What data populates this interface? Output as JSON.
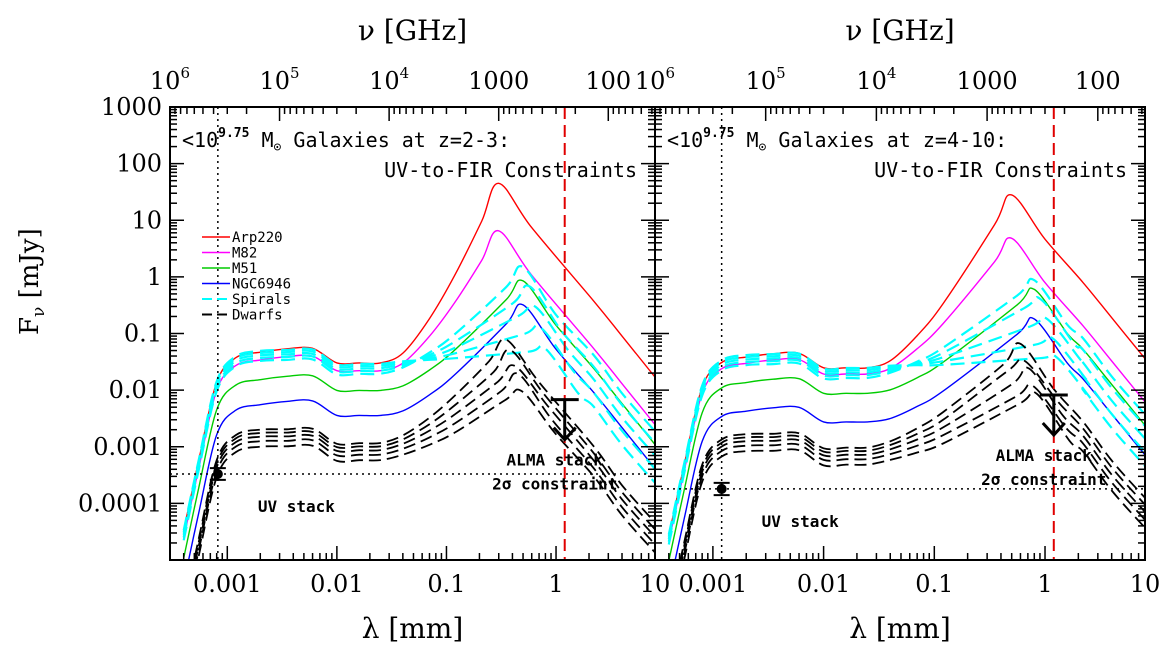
{
  "chart_data": [
    {
      "type": "line",
      "title_line1": "Galaxies at z=2-3:",
      "title_line2": "UV-to-FIR Constraints",
      "mass_prefix": "<10",
      "mass_exp": "9.75",
      "mass_unit": "M",
      "xlabel": "λ [mm]",
      "ylabel": "F",
      "ylabel_sub": "ν",
      "ylabel_unit": " [mJy]",
      "top_label": "ν [GHz]",
      "xscale": "log",
      "yscale": "log",
      "xlim": [
        0.0003,
        8
      ],
      "ylim": [
        1e-05,
        1000
      ],
      "x_ticks": [
        0.001,
        0.01,
        0.1,
        1,
        10
      ],
      "x_tick_labels": [
        "0.001",
        "0.01",
        "0.1",
        "1",
        "10"
      ],
      "y_ticks": [
        0.0001,
        0.001,
        0.01,
        0.1,
        1,
        10,
        100,
        1000
      ],
      "y_tick_labels": [
        "0.0001",
        "0.001",
        "0.01",
        "0.1",
        "1",
        "10",
        "100",
        "1000"
      ],
      "top_ticks_ghz": [
        1000000,
        100000,
        10000,
        1000,
        100
      ],
      "top_tick_base": [
        "10",
        "10",
        "10",
        "1000",
        "100"
      ],
      "top_tick_exp": [
        "6",
        "5",
        "4",
        "",
        ""
      ],
      "legend": {
        "placement": "left",
        "entries": [
          {
            "name": "Arp220",
            "color": "#ff0000",
            "dash": false
          },
          {
            "name": "M82",
            "color": "#ff00ff",
            "dash": false
          },
          {
            "name": "M51",
            "color": "#00cc00",
            "dash": false
          },
          {
            "name": "NGC6946",
            "color": "#0000ff",
            "dash": false
          },
          {
            "name": "Spirals",
            "color": "#00ffff",
            "dash": true
          },
          {
            "name": "Dwarfs",
            "color": "#000000",
            "dash": true
          }
        ]
      },
      "uv_stack": {
        "label": "UV stack",
        "x": 0.00082,
        "y": 0.00033,
        "err_lo": 0.00026,
        "err_hi": 0.00042
      },
      "alma_limit": {
        "label_line1": "ALMA stack",
        "label_line2": "2σ constraint",
        "x": 1.2,
        "y": 0.0068
      },
      "alma_vline_x": 1.2,
      "uv_vline_x": 0.00082,
      "hline_y": 0.00033,
      "templates": {
        "peaks": {
          "Arp220": 45,
          "M82": 6.5,
          "M51": 0.85,
          "NGC6946": 0.32,
          "Spirals": 1.4,
          "Dwarfs": 0.08
        },
        "uv_levels": {
          "Arp220": 0.055,
          "M82": 0.04,
          "M51": 0.018,
          "NGC6946": 0.0065,
          "Spirals": 0.045,
          "Dwarfs": 0.0018
        },
        "peak_wavelength_mm": {
          "Arp220": 0.3,
          "M82": 0.3,
          "M51": 0.5,
          "NGC6946": 0.5,
          "Spirals": 0.5,
          "Dwarfs": 0.35
        }
      }
    },
    {
      "type": "line",
      "title_line1": "Galaxies at z=4-10:",
      "title_line2": "UV-to-FIR Constraints",
      "mass_prefix": "<10",
      "mass_exp": "9.75",
      "mass_unit": "M",
      "xlabel": "λ [mm]",
      "top_label": "ν [GHz]",
      "xscale": "log",
      "yscale": "log",
      "xlim": [
        0.0003,
        8
      ],
      "ylim": [
        1e-05,
        1000
      ],
      "x_ticks": [
        0.001,
        0.01,
        0.1,
        1,
        10
      ],
      "x_tick_labels": [
        "0.001",
        "0.01",
        "0.1",
        "1",
        "10"
      ],
      "top_ticks_ghz": [
        1000000,
        100000,
        10000,
        1000,
        100
      ],
      "top_tick_base": [
        "10",
        "10",
        "10",
        "1000",
        "100"
      ],
      "top_tick_exp": [
        "6",
        "5",
        "4",
        "",
        ""
      ],
      "uv_stack": {
        "label": "UV stack",
        "x": 0.0012,
        "y": 0.00018,
        "err_lo": 0.00014,
        "err_hi": 0.00023
      },
      "alma_limit": {
        "label_line1": "ALMA stack",
        "label_line2": "2σ constraint",
        "x": 1.2,
        "y": 0.0082
      },
      "alma_vline_x": 1.2,
      "uv_vline_x": 0.0012,
      "hline_y": 0.00018,
      "templates": {
        "peaks": {
          "Arp220": 28,
          "M82": 4.8,
          "M51": 0.6,
          "NGC6946": 0.18,
          "Spirals": 0.9,
          "Dwarfs": 0.06
        },
        "uv_levels": {
          "Arp220": 0.045,
          "M82": 0.035,
          "M51": 0.016,
          "NGC6946": 0.005,
          "Spirals": 0.038,
          "Dwarfs": 0.0015
        },
        "peak_wavelength_mm": {
          "Arp220": 0.5,
          "M82": 0.5,
          "M51": 0.8,
          "NGC6946": 0.8,
          "Spirals": 0.8,
          "Dwarfs": 0.6
        }
      }
    }
  ]
}
